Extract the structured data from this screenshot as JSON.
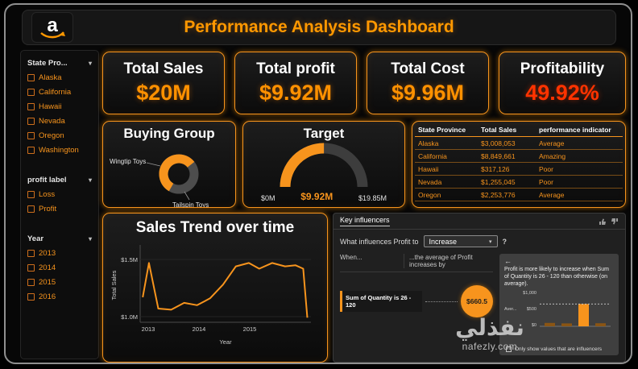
{
  "header": {
    "title": "Performance Analysis Dashboard"
  },
  "logo": {
    "letter": "a"
  },
  "sidebar": {
    "slicers": [
      {
        "label": "State Pro...",
        "items": [
          "Alaska",
          "California",
          "Hawaii",
          "Nevada",
          "Oregon",
          "Washington"
        ]
      },
      {
        "label": "profit label",
        "items": [
          "Loss",
          "Profit"
        ]
      },
      {
        "label": "Year",
        "items": [
          "2013",
          "2014",
          "2015",
          "2016"
        ]
      }
    ]
  },
  "kpis": [
    {
      "label": "Total Sales",
      "value": "$20M"
    },
    {
      "label": "Total profit",
      "value": "$9.92M"
    },
    {
      "label": "Total Cost",
      "value": "$9.96M"
    },
    {
      "label": "Profitability",
      "value": "49.92%"
    }
  ],
  "panels": {
    "buying_group": {
      "title": "Buying Group"
    },
    "target": {
      "title": "Target",
      "min": "$0M",
      "value": "$9.92M",
      "max": "$19.85M"
    },
    "sales_trend": {
      "title": "Sales Trend over time"
    }
  },
  "table": {
    "columns": [
      "State Province",
      "Total Sales",
      "performance indicator"
    ],
    "rows": [
      [
        "Alaska",
        "$3,008,053",
        "Average"
      ],
      [
        "California",
        "$8,849,661",
        "Amazing"
      ],
      [
        "Hawaii",
        "$317,126",
        "Poor"
      ],
      [
        "Nevada",
        "$1,255,045",
        "Poor"
      ],
      [
        "Oregon",
        "$2,253,776",
        "Average"
      ]
    ]
  },
  "key_influencers": {
    "tab": "Key influencers",
    "question": "What influences Profit to",
    "dropdown_value": "Increase",
    "help": "?",
    "when_label": "When...",
    "increase_label": "...the average of Profit increases by",
    "influencer": {
      "text": "Sum of Quantity is 26 - 120",
      "value": "$660.5"
    },
    "detail": {
      "text": "Profit is more likely to increase when Sum of Quantity is 26 - 120 than otherwise (on average).",
      "axis_title": "Aver...",
      "checkbox_label": "Only show values that are influencers"
    }
  },
  "watermark": {
    "arabic": "نفذلي",
    "domain": "nafezly.com"
  },
  "chart_data": [
    {
      "id": "buying_group",
      "type": "pie",
      "donut": true,
      "labels": [
        "Wingtip Toys",
        "Tailspin Toys"
      ],
      "values": [
        56,
        44
      ],
      "colors": [
        "#f7941d",
        "#4d4d4d"
      ]
    },
    {
      "id": "target",
      "type": "gauge",
      "value": 9.92,
      "min": 0,
      "max": 19.85,
      "unit": "$M",
      "color": "#f7941d",
      "track": "#3d3d3d"
    },
    {
      "id": "sales_trend",
      "type": "line",
      "title": "Sales Trend over time",
      "xlabel": "Year",
      "ylabel": "Total Sales",
      "yticks": [
        "$1.5M",
        "$1.0M"
      ],
      "xticks": [
        "2013",
        "2014",
        "2015"
      ],
      "xlim": [
        2012.85,
        2016.15
      ],
      "ylim_millions": [
        0.95,
        1.6
      ],
      "color": "#f7941d",
      "points": [
        [
          2012.9,
          1.17
        ],
        [
          2013.02,
          1.47
        ],
        [
          2013.2,
          1.07
        ],
        [
          2013.45,
          1.06
        ],
        [
          2013.7,
          1.12
        ],
        [
          2013.95,
          1.1
        ],
        [
          2014.2,
          1.16
        ],
        [
          2014.45,
          1.28
        ],
        [
          2014.7,
          1.44
        ],
        [
          2014.95,
          1.47
        ],
        [
          2015.15,
          1.42
        ],
        [
          2015.4,
          1.47
        ],
        [
          2015.65,
          1.44
        ],
        [
          2015.85,
          1.45
        ],
        [
          2016.0,
          1.42
        ],
        [
          2016.08,
          0.99
        ]
      ]
    },
    {
      "id": "influencer_detail",
      "type": "bar",
      "ylabel": "Aver...",
      "yticks": [
        "$1,000",
        "$500",
        "$0"
      ],
      "ymax": 1000,
      "values": [
        100,
        85,
        660,
        90
      ],
      "highlight_index": 2,
      "bar_color": "#8a5514",
      "highlight_color": "#f7941d",
      "ref_value": 660
    }
  ]
}
